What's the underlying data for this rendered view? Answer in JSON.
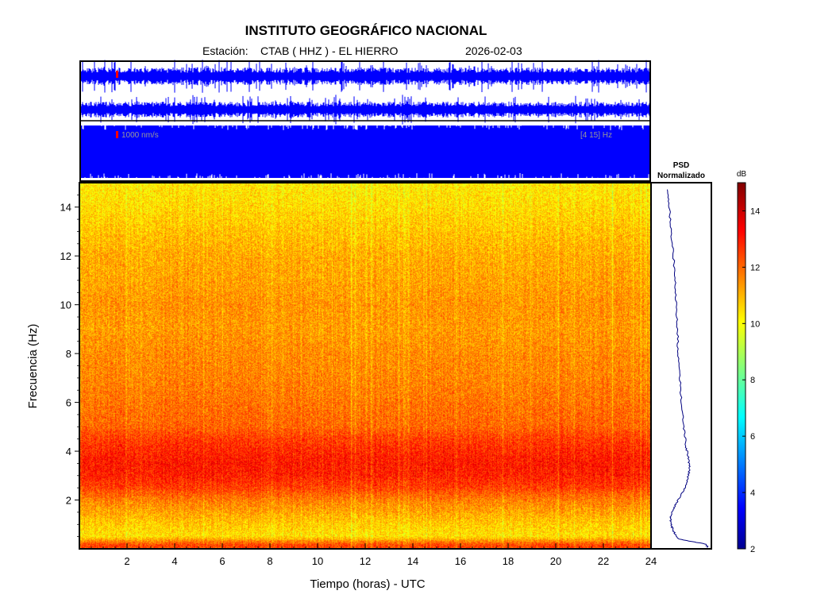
{
  "header": {
    "title": "INSTITUTO GEOGRÁFICO NACIONAL",
    "station_label": "Estación:",
    "station": "CTAB ( HHZ ) - EL HIERRO",
    "date": "2026-02-03"
  },
  "colors": {
    "trace": "#0000ff",
    "scale_marker": "#ff0000",
    "psd_line": "#000080",
    "annotation": "#999999"
  },
  "chart_data": [
    {
      "type": "line",
      "title": "",
      "series": [
        {
          "name": "",
          "description_values_not_printed": true
        }
      ],
      "annotations": {
        "amplitude_scale": "1000 nm/s",
        "band_top": "",
        "band_bottom": "[4 15] Hz"
      }
    },
    {
      "type": "heatmap",
      "xlabel": "Tiempo (horas) - UTC",
      "ylabel": "Frecuencia  (Hz)",
      "xlim": [
        0,
        24
      ],
      "ylim": [
        0,
        15
      ],
      "x_ticks": [
        "2",
        "4",
        "6",
        "8",
        "10",
        "12",
        "14",
        "16",
        "18",
        "20",
        "22",
        "24"
      ],
      "y_ticks": [
        "2",
        "4",
        "6",
        "8",
        "10",
        "12",
        "14"
      ],
      "band_profile": [
        {
          "f": 0.15,
          "db": 12.5
        },
        {
          "f": 0.5,
          "db": 10.5
        },
        {
          "f": 1.0,
          "db": 10.8
        },
        {
          "f": 1.5,
          "db": 11.3
        },
        {
          "f": 2.0,
          "db": 11.8
        },
        {
          "f": 2.5,
          "db": 12.6
        },
        {
          "f": 3.0,
          "db": 13.0
        },
        {
          "f": 3.5,
          "db": 13.1
        },
        {
          "f": 4.0,
          "db": 12.9
        },
        {
          "f": 4.5,
          "db": 12.6
        },
        {
          "f": 5.0,
          "db": 12.1
        },
        {
          "f": 6.0,
          "db": 11.9
        },
        {
          "f": 7.0,
          "db": 11.7
        },
        {
          "f": 8.0,
          "db": 11.6
        },
        {
          "f": 9.0,
          "db": 11.4
        },
        {
          "f": 10.0,
          "db": 11.5
        },
        {
          "f": 11.0,
          "db": 11.3
        },
        {
          "f": 12.0,
          "db": 11.2
        },
        {
          "f": 13.0,
          "db": 10.9
        },
        {
          "f": 14.0,
          "db": 10.6
        },
        {
          "f": 15.0,
          "db": 10.4
        }
      ]
    },
    {
      "type": "line",
      "title": "PSD",
      "subtitle": "Normalizado",
      "ylim": [
        0,
        15
      ],
      "psd": [
        {
          "f": 0.05,
          "v": 0.95
        },
        {
          "f": 0.2,
          "v": 0.9
        },
        {
          "f": 0.4,
          "v": 0.45
        },
        {
          "f": 0.7,
          "v": 0.38
        },
        {
          "f": 1.0,
          "v": 0.33
        },
        {
          "f": 1.3,
          "v": 0.32
        },
        {
          "f": 1.7,
          "v": 0.38
        },
        {
          "f": 2.0,
          "v": 0.45
        },
        {
          "f": 2.5,
          "v": 0.56
        },
        {
          "f": 3.0,
          "v": 0.62
        },
        {
          "f": 3.3,
          "v": 0.64
        },
        {
          "f": 3.7,
          "v": 0.62
        },
        {
          "f": 4.2,
          "v": 0.58
        },
        {
          "f": 5.0,
          "v": 0.54
        },
        {
          "f": 6.0,
          "v": 0.5
        },
        {
          "f": 7.0,
          "v": 0.48
        },
        {
          "f": 8.0,
          "v": 0.45
        },
        {
          "f": 9.0,
          "v": 0.44
        },
        {
          "f": 10.0,
          "v": 0.42
        },
        {
          "f": 11.0,
          "v": 0.4
        },
        {
          "f": 12.0,
          "v": 0.37
        },
        {
          "f": 13.0,
          "v": 0.33
        },
        {
          "f": 14.0,
          "v": 0.3
        },
        {
          "f": 14.8,
          "v": 0.26
        }
      ]
    },
    {
      "type": "heatmap",
      "title": "dB",
      "colorbar_ticks": [
        "2",
        "4",
        "6",
        "8",
        "10",
        "12",
        "14"
      ],
      "range": [
        2,
        15
      ]
    }
  ]
}
